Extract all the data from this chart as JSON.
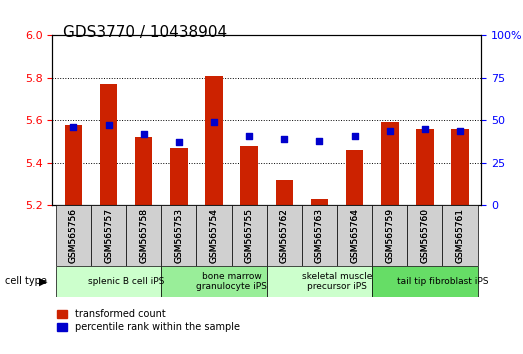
{
  "title": "GDS3770 / 10438904",
  "samples": [
    "GSM565756",
    "GSM565757",
    "GSM565758",
    "GSM565753",
    "GSM565754",
    "GSM565755",
    "GSM565762",
    "GSM565763",
    "GSM565764",
    "GSM565759",
    "GSM565760",
    "GSM565761"
  ],
  "transformed_count": [
    5.58,
    5.77,
    5.52,
    5.47,
    5.81,
    5.48,
    5.32,
    5.23,
    5.46,
    5.59,
    5.56,
    5.56
  ],
  "percentile_rank": [
    46,
    47,
    42,
    37,
    49,
    41,
    39,
    38,
    41,
    44,
    45,
    44
  ],
  "bar_color": "#cc2200",
  "dot_color": "#0000cc",
  "ylim_left": [
    5.2,
    6.0
  ],
  "ylim_right": [
    0,
    100
  ],
  "yticks_left": [
    5.2,
    5.4,
    5.6,
    5.8,
    6.0
  ],
  "yticks_right": [
    0,
    25,
    50,
    75,
    100
  ],
  "cell_type_groups": [
    {
      "label": "splenic B cell iPS",
      "start": 0,
      "end": 3,
      "color": "#ccffcc"
    },
    {
      "label": "bone marrow\ngranulocyte iPS",
      "start": 3,
      "end": 6,
      "color": "#99ee99"
    },
    {
      "label": "skeletal muscle\nprecursor iPS",
      "start": 6,
      "end": 9,
      "color": "#ccffcc"
    },
    {
      "label": "tail tip fibroblast iPS",
      "start": 9,
      "end": 12,
      "color": "#66dd66"
    }
  ],
  "xlabel_left": "",
  "ylabel_left": "",
  "ylabel_right": "",
  "legend_red_label": "transformed count",
  "legend_blue_label": "percentile rank within the sample",
  "cell_type_label": "cell type",
  "bar_width": 0.5
}
